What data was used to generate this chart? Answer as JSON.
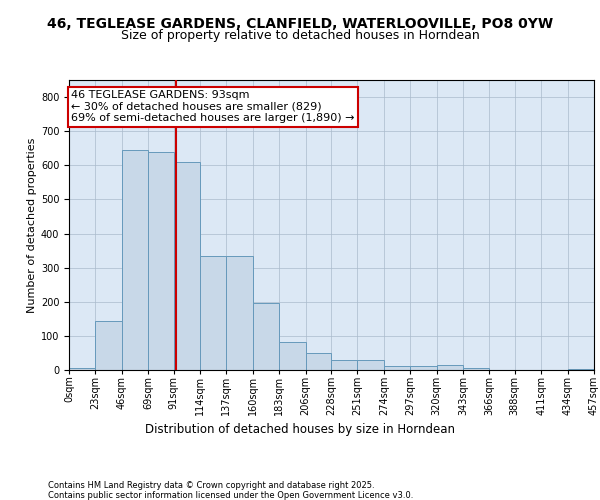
{
  "title1": "46, TEGLEASE GARDENS, CLANFIELD, WATERLOOVILLE, PO8 0YW",
  "title2": "Size of property relative to detached houses in Horndean",
  "xlabel": "Distribution of detached houses by size in Horndean",
  "ylabel": "Number of detached properties",
  "bin_edges": [
    0,
    23,
    46,
    69,
    91,
    114,
    137,
    160,
    183,
    206,
    228,
    251,
    274,
    297,
    320,
    343,
    366,
    388,
    411,
    434,
    457
  ],
  "bin_labels": [
    "0sqm",
    "23sqm",
    "46sqm",
    "69sqm",
    "91sqm",
    "114sqm",
    "137sqm",
    "160sqm",
    "183sqm",
    "206sqm",
    "228sqm",
    "251sqm",
    "274sqm",
    "297sqm",
    "320sqm",
    "343sqm",
    "366sqm",
    "388sqm",
    "411sqm",
    "434sqm",
    "457sqm"
  ],
  "bar_heights": [
    5,
    145,
    645,
    640,
    610,
    335,
    335,
    197,
    82,
    50,
    30,
    28,
    12,
    12,
    15,
    5,
    0,
    0,
    0,
    3
  ],
  "bar_color": "#c8d8e8",
  "bar_edge_color": "#6699bb",
  "property_size": 93,
  "vline_color": "#cc0000",
  "annotation_text": "46 TEGLEASE GARDENS: 93sqm\n← 30% of detached houses are smaller (829)\n69% of semi-detached houses are larger (1,890) →",
  "annotation_box_color": "#cc0000",
  "ylim": [
    0,
    850
  ],
  "xlim": [
    0,
    457
  ],
  "grid_color": "#aabbcc",
  "background_color": "#dce8f5",
  "footer_text": "Contains HM Land Registry data © Crown copyright and database right 2025.\nContains public sector information licensed under the Open Government Licence v3.0.",
  "title1_fontsize": 10,
  "title2_fontsize": 9,
  "xlabel_fontsize": 8.5,
  "ylabel_fontsize": 8,
  "tick_fontsize": 7,
  "annotation_fontsize": 8,
  "footer_fontsize": 6
}
